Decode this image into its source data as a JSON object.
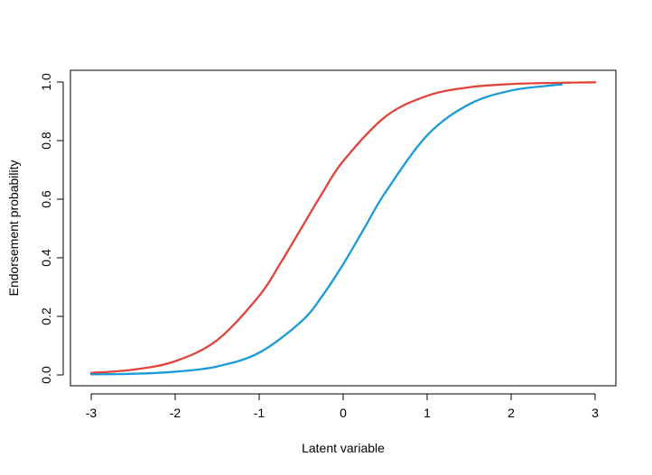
{
  "chart_data": {
    "type": "line",
    "title": "",
    "xlabel": "Latent variable",
    "ylabel": "Endorsement probability",
    "xlim": [
      -3,
      3
    ],
    "ylim": [
      0,
      1
    ],
    "xticks": [
      "-3",
      "-2",
      "-1",
      "0",
      "1",
      "2",
      "3"
    ],
    "yticks": [
      "0.0",
      "0.2",
      "0.4",
      "0.6",
      "0.8",
      "1.0"
    ],
    "grid": false,
    "legend": "none",
    "series": [
      {
        "color": "#e0443a",
        "x": [
          -3.0,
          -2.5,
          -2.0,
          -1.5,
          -1.0,
          -0.75,
          -0.5,
          -0.25,
          0.0,
          0.5,
          1.0,
          1.5,
          2.0,
          2.5,
          3.0
        ],
        "y": [
          0.007,
          0.018,
          0.047,
          0.119,
          0.27,
          0.38,
          0.5,
          0.62,
          0.73,
          0.881,
          0.953,
          0.982,
          0.993,
          0.997,
          0.999
        ]
      },
      {
        "color": "#1a9ad6",
        "x": [
          -3.0,
          -2.5,
          -2.0,
          -1.5,
          -1.0,
          -0.5,
          -0.25,
          0.0,
          0.25,
          0.5,
          1.0,
          1.5,
          2.0,
          2.5,
          2.6
        ],
        "y": [
          0.002,
          0.004,
          0.011,
          0.029,
          0.076,
          0.182,
          0.269,
          0.378,
          0.5,
          0.622,
          0.818,
          0.924,
          0.971,
          0.989,
          0.991
        ]
      }
    ]
  }
}
